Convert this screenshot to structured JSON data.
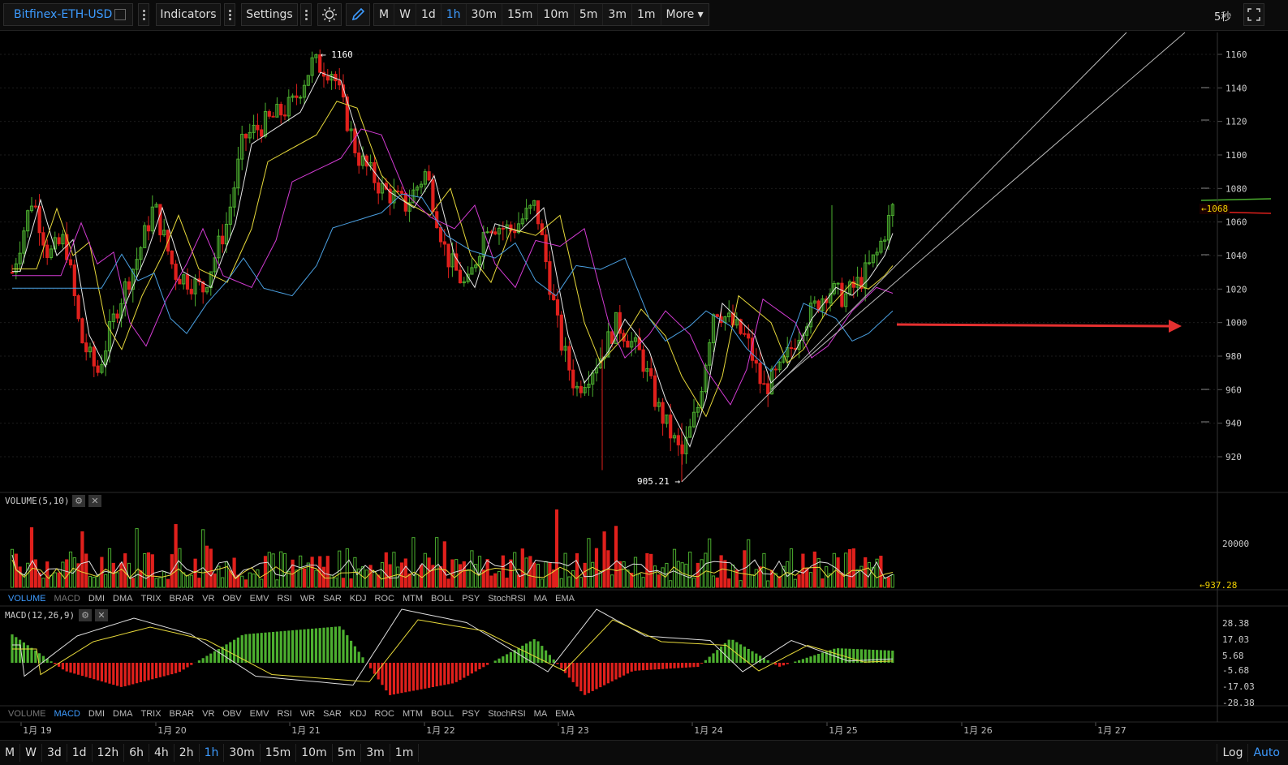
{
  "toolbar": {
    "symbol": "Bitfinex-ETH-USD",
    "indicators_label": "Indicators",
    "settings_label": "Settings",
    "timeframes": [
      "M",
      "W",
      "1d",
      "1h",
      "30m",
      "15m",
      "10m",
      "5m",
      "3m",
      "1m"
    ],
    "active_timeframe": "1h",
    "more_label": "More",
    "refresh_label": "5秒"
  },
  "price_axis": {
    "ticks": [
      "1160",
      "1140",
      "1120",
      "1100",
      "1080",
      "1060",
      "1040",
      "1020",
      "1000",
      "980",
      "960",
      "940",
      "920"
    ],
    "current_price": "1068"
  },
  "annotations": {
    "high_label": "1160",
    "low_label": "905.21"
  },
  "volume_pane": {
    "title": "VOLUME(5,10)",
    "tick": "20000",
    "current": "937.28"
  },
  "macd_pane": {
    "title": "MACD(12,26,9)",
    "ticks": [
      "28.38",
      "17.03",
      "5.68",
      "-5.68",
      "-17.03",
      "-28.38"
    ]
  },
  "indicator_tabs": [
    "VOLUME",
    "MACD",
    "DMI",
    "DMA",
    "TRIX",
    "BRAR",
    "VR",
    "OBV",
    "EMV",
    "RSI",
    "WR",
    "SAR",
    "KDJ",
    "ROC",
    "MTM",
    "BOLL",
    "PSY",
    "StochRSI",
    "MA",
    "EMA"
  ],
  "date_axis": [
    "1月 19",
    "1月 20",
    "1月 21",
    "1月 22",
    "1月 23",
    "1月 24",
    "1月 25",
    "1月 26",
    "1月 27"
  ],
  "bottom_bar": {
    "timeframes": [
      "M",
      "W",
      "3d",
      "1d",
      "12h",
      "6h",
      "4h",
      "2h",
      "1h",
      "30m",
      "15m",
      "10m",
      "5m",
      "3m",
      "1m"
    ],
    "active": "1h",
    "log_label": "Log",
    "auto_label": "Auto"
  },
  "colors": {
    "up": "#4caf2f",
    "down": "#e0201c",
    "ma_white": "#e8e8e8",
    "ma_yellow": "#e6d83a",
    "ma_magenta": "#d33bd3",
    "ma_blue": "#4a9fe0",
    "active": "#3d9bff",
    "arrow": "#e53030"
  }
}
